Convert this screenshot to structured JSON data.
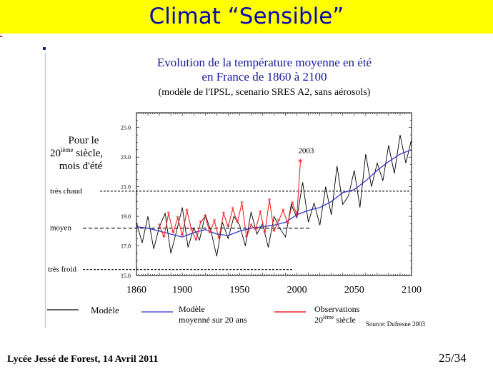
{
  "slide": {
    "title": "Climat “Sensible”",
    "footer_left": "Lycée Jessé de Forest, 14 Avril 2011",
    "page_number": "25/34",
    "colors": {
      "title_bg": "#ffff00",
      "title_text": "#0a0ab0",
      "chart_title": "#1a1a99"
    }
  },
  "chart_data": {
    "type": "line",
    "title": "Evolution de la température moyenne en été",
    "title_line2": "en France de 1860 à 2100",
    "subtitle": "(modèle de l'IPSL, scenario SRES A2, sans aérosols)",
    "xlabel": "",
    "ylabel": "",
    "xlim": [
      1860,
      2100
    ],
    "ylim": [
      15.0,
      26.0
    ],
    "x_ticks": [
      1860,
      1900,
      1950,
      2000,
      2050,
      2100
    ],
    "y_ticks": [
      "15.0",
      "17.0",
      "19.0",
      "21.0",
      "23.0",
      "25.0"
    ],
    "left_note": [
      "Pour le",
      "20",
      "ième",
      " siècle,",
      "mois d'été"
    ],
    "reference_lines": [
      {
        "label": "très chaud",
        "value": 20.7
      },
      {
        "label": "moyen",
        "value": 18.2
      },
      {
        "label": "très froid",
        "value": 15.4
      }
    ],
    "annotation": {
      "label": "2003",
      "x": 2003,
      "y": 22.7
    },
    "legend": {
      "model": "Modèle",
      "mean_line1": "Modèle",
      "mean_line2": "moyenné sur 20 ans",
      "obs_line1": "Observations",
      "obs_line2_a": "20",
      "obs_line2_sup": "ième",
      "obs_line2_b": " siècle"
    },
    "source": "Source: Dufresne 2003",
    "series": [
      {
        "name": "Modèle",
        "color": "#000000",
        "x": [
          1860,
          1865,
          1870,
          1875,
          1880,
          1885,
          1890,
          1895,
          1900,
          1905,
          1910,
          1915,
          1920,
          1925,
          1930,
          1935,
          1940,
          1945,
          1950,
          1955,
          1960,
          1965,
          1970,
          1975,
          1980,
          1985,
          1990,
          1995,
          2000,
          2005,
          2010,
          2015,
          2020,
          2025,
          2030,
          2035,
          2040,
          2045,
          2050,
          2055,
          2060,
          2065,
          2070,
          2075,
          2080,
          2085,
          2090,
          2095,
          2100
        ],
        "values": [
          18.6,
          17.2,
          19.0,
          16.8,
          18.3,
          19.2,
          16.5,
          18.0,
          19.6,
          16.9,
          18.2,
          17.4,
          19.1,
          18.0,
          16.3,
          18.6,
          17.5,
          19.0,
          18.4,
          17.0,
          19.3,
          17.8,
          18.5,
          16.9,
          19.0,
          18.2,
          17.6,
          19.8,
          18.9,
          21.3,
          18.6,
          19.9,
          18.4,
          21.0,
          19.1,
          22.4,
          19.8,
          20.4,
          22.1,
          19.6,
          23.2,
          21.0,
          22.6,
          21.4,
          23.8,
          21.9,
          24.5,
          22.6,
          24.2
        ]
      },
      {
        "name": "Modèle moyenné sur 20 ans",
        "color": "#3333cc",
        "x": [
          1860,
          1870,
          1880,
          1890,
          1900,
          1910,
          1920,
          1930,
          1940,
          1950,
          1960,
          1970,
          1980,
          1990,
          2000,
          2010,
          2020,
          2030,
          2040,
          2050,
          2060,
          2070,
          2080,
          2090,
          2100
        ],
        "values": [
          18.3,
          18.2,
          18.0,
          17.8,
          17.6,
          17.9,
          18.1,
          17.8,
          17.7,
          18.0,
          18.2,
          18.3,
          18.4,
          18.6,
          19.1,
          19.4,
          19.6,
          20.0,
          20.6,
          20.8,
          21.4,
          22.1,
          22.7,
          23.2,
          23.5
        ]
      },
      {
        "name": "Observations 20ième siècle",
        "color": "#ee2222",
        "x": [
          1880,
          1884,
          1888,
          1892,
          1896,
          1900,
          1904,
          1908,
          1912,
          1916,
          1920,
          1924,
          1928,
          1932,
          1936,
          1940,
          1944,
          1948,
          1952,
          1956,
          1960,
          1964,
          1968,
          1972,
          1976,
          1980,
          1984,
          1988,
          1992,
          1996,
          2000,
          2003
        ],
        "values": [
          18.4,
          17.6,
          19.2,
          17.9,
          18.9,
          17.7,
          19.4,
          18.1,
          17.4,
          18.6,
          19.0,
          17.9,
          18.7,
          17.5,
          19.2,
          18.3,
          19.5,
          18.6,
          19.9,
          17.6,
          18.4,
          18.1,
          19.3,
          17.9,
          20.1,
          18.0,
          18.7,
          19.4,
          18.5,
          19.9,
          19.1,
          22.7
        ]
      }
    ]
  }
}
